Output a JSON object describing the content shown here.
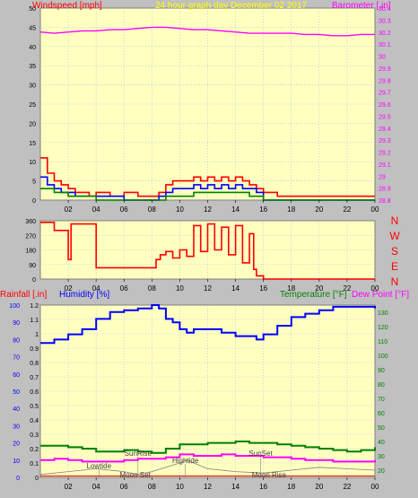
{
  "colors": {
    "background": "#c0c0c0",
    "plot_bg": "#ffffc0",
    "grid": "#b0b0ff",
    "axis_red": "#ff0000",
    "title_yellow": "#ffff00",
    "magenta": "#ff00ff",
    "blue": "#0000ff",
    "green": "#008000",
    "gust_red": "#ff0000",
    "tide": "#808080"
  },
  "chart_data": [
    {
      "id": "wind",
      "type": "line",
      "title": "24 hour graph day   December 02 2017",
      "ylabel_left": "Windspeed [mph]",
      "ylabel_right": "Barometer [.in]",
      "ylim_left": [
        0,
        50
      ],
      "ylim_right": [
        28.8,
        30.4
      ],
      "yticks_left": [
        "50",
        "45",
        "40",
        "35",
        "30",
        "25",
        "20",
        "15",
        "10",
        "5",
        "0"
      ],
      "yticks_right": [
        "30.4",
        "30.3",
        "30.2",
        "30.1",
        "30",
        "29.9",
        "29.8",
        "29.7",
        "29.6",
        "29.5",
        "29.4",
        "29.3",
        "29.2",
        "29.1",
        "29",
        "28.9",
        "28.8"
      ],
      "x_ticks": [
        "02",
        "04",
        "06",
        "08",
        "10",
        "12",
        "14",
        "16",
        "18",
        "20",
        "22",
        "00"
      ],
      "xlim": [
        0,
        24
      ],
      "barometer": {
        "x": [
          0,
          1,
          2,
          3,
          4,
          5,
          6,
          7,
          8,
          9,
          10,
          11,
          12,
          13,
          14,
          15,
          16,
          17,
          18,
          19,
          20,
          21,
          22,
          23,
          24
        ],
        "y": [
          30.2,
          30.19,
          30.2,
          30.21,
          30.21,
          30.22,
          30.22,
          30.23,
          30.24,
          30.24,
          30.23,
          30.22,
          30.22,
          30.21,
          30.2,
          30.19,
          30.19,
          30.19,
          30.19,
          30.18,
          30.18,
          30.17,
          30.17,
          30.18,
          30.18
        ]
      },
      "gust": {
        "x": [
          0,
          0.5,
          1,
          1.5,
          2,
          2.5,
          3,
          3.5,
          4,
          5,
          6,
          7,
          8,
          8.5,
          9,
          9.5,
          10,
          10.5,
          11,
          11.5,
          12,
          12.5,
          13,
          13.5,
          14,
          14.5,
          15,
          15.5,
          16,
          17,
          18,
          19,
          20,
          21,
          22,
          23,
          24
        ],
        "y": [
          11,
          7,
          5,
          4,
          3,
          2,
          2,
          1,
          2,
          1,
          2,
          1,
          1,
          2,
          4,
          5,
          5,
          5,
          6,
          5,
          6,
          5,
          6,
          5,
          6,
          5,
          4,
          3,
          2,
          1,
          1,
          1,
          1,
          1,
          1,
          1,
          1
        ]
      },
      "avg": {
        "x": [
          0,
          0.5,
          1,
          1.5,
          2,
          2.5,
          3,
          3.5,
          4,
          6,
          8,
          8.5,
          9,
          9.5,
          10,
          10.5,
          11,
          11.5,
          12,
          12.5,
          13,
          13.5,
          14,
          14.5,
          15,
          15.5,
          16,
          24
        ],
        "y": [
          6,
          4,
          3,
          2,
          2,
          1,
          1,
          1,
          1,
          0,
          0,
          1,
          2,
          3,
          3,
          3,
          4,
          3,
          4,
          3,
          4,
          3,
          4,
          3,
          3,
          2,
          0,
          0
        ]
      },
      "wind_low": {
        "x": [
          0,
          1,
          2,
          3,
          4,
          8,
          9,
          10,
          11,
          12,
          13,
          14,
          15,
          16,
          24
        ],
        "y": [
          3,
          2,
          1,
          1,
          0,
          0,
          1,
          1,
          2,
          2,
          2,
          2,
          1,
          0,
          0
        ]
      }
    },
    {
      "id": "direction",
      "type": "line",
      "ylabel_right": [
        "N",
        "W",
        "S",
        "E",
        "N"
      ],
      "ylim": [
        0,
        360
      ],
      "yticks": [
        "360",
        "270",
        "180",
        "90",
        "0"
      ],
      "direction": {
        "x": [
          0,
          1,
          2,
          2.2,
          3,
          4,
          5,
          6,
          7,
          8,
          8.3,
          8.6,
          9,
          9.5,
          10,
          10.5,
          11,
          11.5,
          12,
          12.5,
          13,
          13.5,
          14,
          14.5,
          15,
          15.3,
          15.5,
          16,
          17,
          18,
          19,
          20,
          21,
          22,
          23,
          24
        ],
        "y": [
          350,
          300,
          120,
          340,
          340,
          70,
          70,
          70,
          70,
          70,
          120,
          150,
          170,
          130,
          180,
          140,
          330,
          170,
          340,
          180,
          320,
          150,
          330,
          100,
          280,
          60,
          20,
          0,
          0,
          0,
          0,
          0,
          0,
          0,
          0,
          0
        ]
      }
    },
    {
      "id": "temp",
      "type": "line",
      "ylabel_left_1": "Rainfall [.in]",
      "ylabel_left_2": "Humidity [%]",
      "ylabel_right_1": "Temperature [°F]",
      "ylabel_right_2": "Dew Point [°F]",
      "ylim_humidity": [
        0,
        100
      ],
      "ylim_rain": [
        0,
        1.2
      ],
      "ylim_temp": [
        15,
        135
      ],
      "yticks_humidity": [
        "100",
        "90",
        "80",
        "70",
        "60",
        "50",
        "40",
        "30",
        "20",
        "10",
        "0"
      ],
      "yticks_rain": [
        "1.2",
        "1.1",
        "1",
        "0.9",
        "0.8",
        "0.7",
        "0.6",
        "0.5",
        "0.4",
        "0.3",
        "0.2",
        "0.1",
        "0"
      ],
      "yticks_temp": [
        "130",
        "120",
        "110",
        "100",
        "90",
        "80",
        "70",
        "60",
        "50",
        "40",
        "30",
        "20"
      ],
      "humidity": {
        "x": [
          0,
          1,
          2,
          3,
          4,
          5,
          6,
          7,
          8,
          8.5,
          9,
          9.5,
          10,
          10.5,
          11,
          12,
          13,
          14,
          15,
          15.5,
          16,
          17,
          18,
          19,
          20,
          21,
          22,
          23,
          24
        ],
        "y": [
          78,
          80,
          83,
          86,
          92,
          96,
          97,
          98,
          100,
          98,
          92,
          90,
          86,
          84,
          86,
          86,
          84,
          82,
          82,
          80,
          83,
          88,
          93,
          95,
          97,
          99,
          99,
          99,
          98
        ]
      },
      "temperature": {
        "x": [
          0,
          1,
          2,
          3,
          4,
          5,
          6,
          7,
          8,
          9,
          10,
          11,
          12,
          13,
          14,
          15,
          16,
          17,
          18,
          19,
          20,
          21,
          22,
          23,
          24
        ],
        "y": [
          37,
          37,
          36,
          35,
          33,
          33,
          34,
          33,
          32,
          35,
          38,
          38,
          39,
          39,
          40,
          39,
          39,
          38,
          37,
          36,
          35,
          34,
          33,
          34,
          36
        ]
      },
      "dewpoint": {
        "x": [
          0,
          1,
          2,
          3,
          4,
          5,
          6,
          7,
          8,
          9,
          10,
          11,
          12,
          13,
          14,
          15,
          16,
          17,
          18,
          19,
          20,
          21,
          22,
          23,
          24
        ],
        "y": [
          27,
          28,
          27,
          26,
          26,
          26,
          27,
          28,
          28,
          29,
          31,
          30,
          30,
          31,
          30,
          30,
          29,
          29,
          28,
          27,
          27,
          26,
          26,
          26,
          27
        ]
      },
      "rainfall": {
        "x": [
          0,
          24
        ],
        "y": [
          0.01,
          0.01
        ]
      },
      "tide": {
        "x": [
          0,
          2,
          4,
          6,
          7,
          8,
          9,
          10,
          10.5,
          11,
          12,
          14,
          16,
          18,
          20,
          22,
          24
        ],
        "y": [
          0.02,
          0.04,
          0.06,
          0.04,
          0.02,
          0.04,
          0.07,
          0.1,
          0.12,
          0.1,
          0.06,
          0.04,
          0.03,
          0.05,
          0.07,
          0.06,
          0.05
        ]
      },
      "annotations": [
        {
          "label": "Lowtide",
          "x": 4.2,
          "level": "low"
        },
        {
          "label": "SunRise",
          "x": 7.0,
          "level": "mid"
        },
        {
          "label": "Moon Set",
          "x": 6.8,
          "level": "bottom"
        },
        {
          "label": "Hightide",
          "x": 10.4,
          "level": "low2"
        },
        {
          "label": "SunSet",
          "x": 15.8,
          "level": "mid"
        },
        {
          "label": "Moon Rise",
          "x": 16.4,
          "level": "bottom"
        }
      ]
    }
  ]
}
